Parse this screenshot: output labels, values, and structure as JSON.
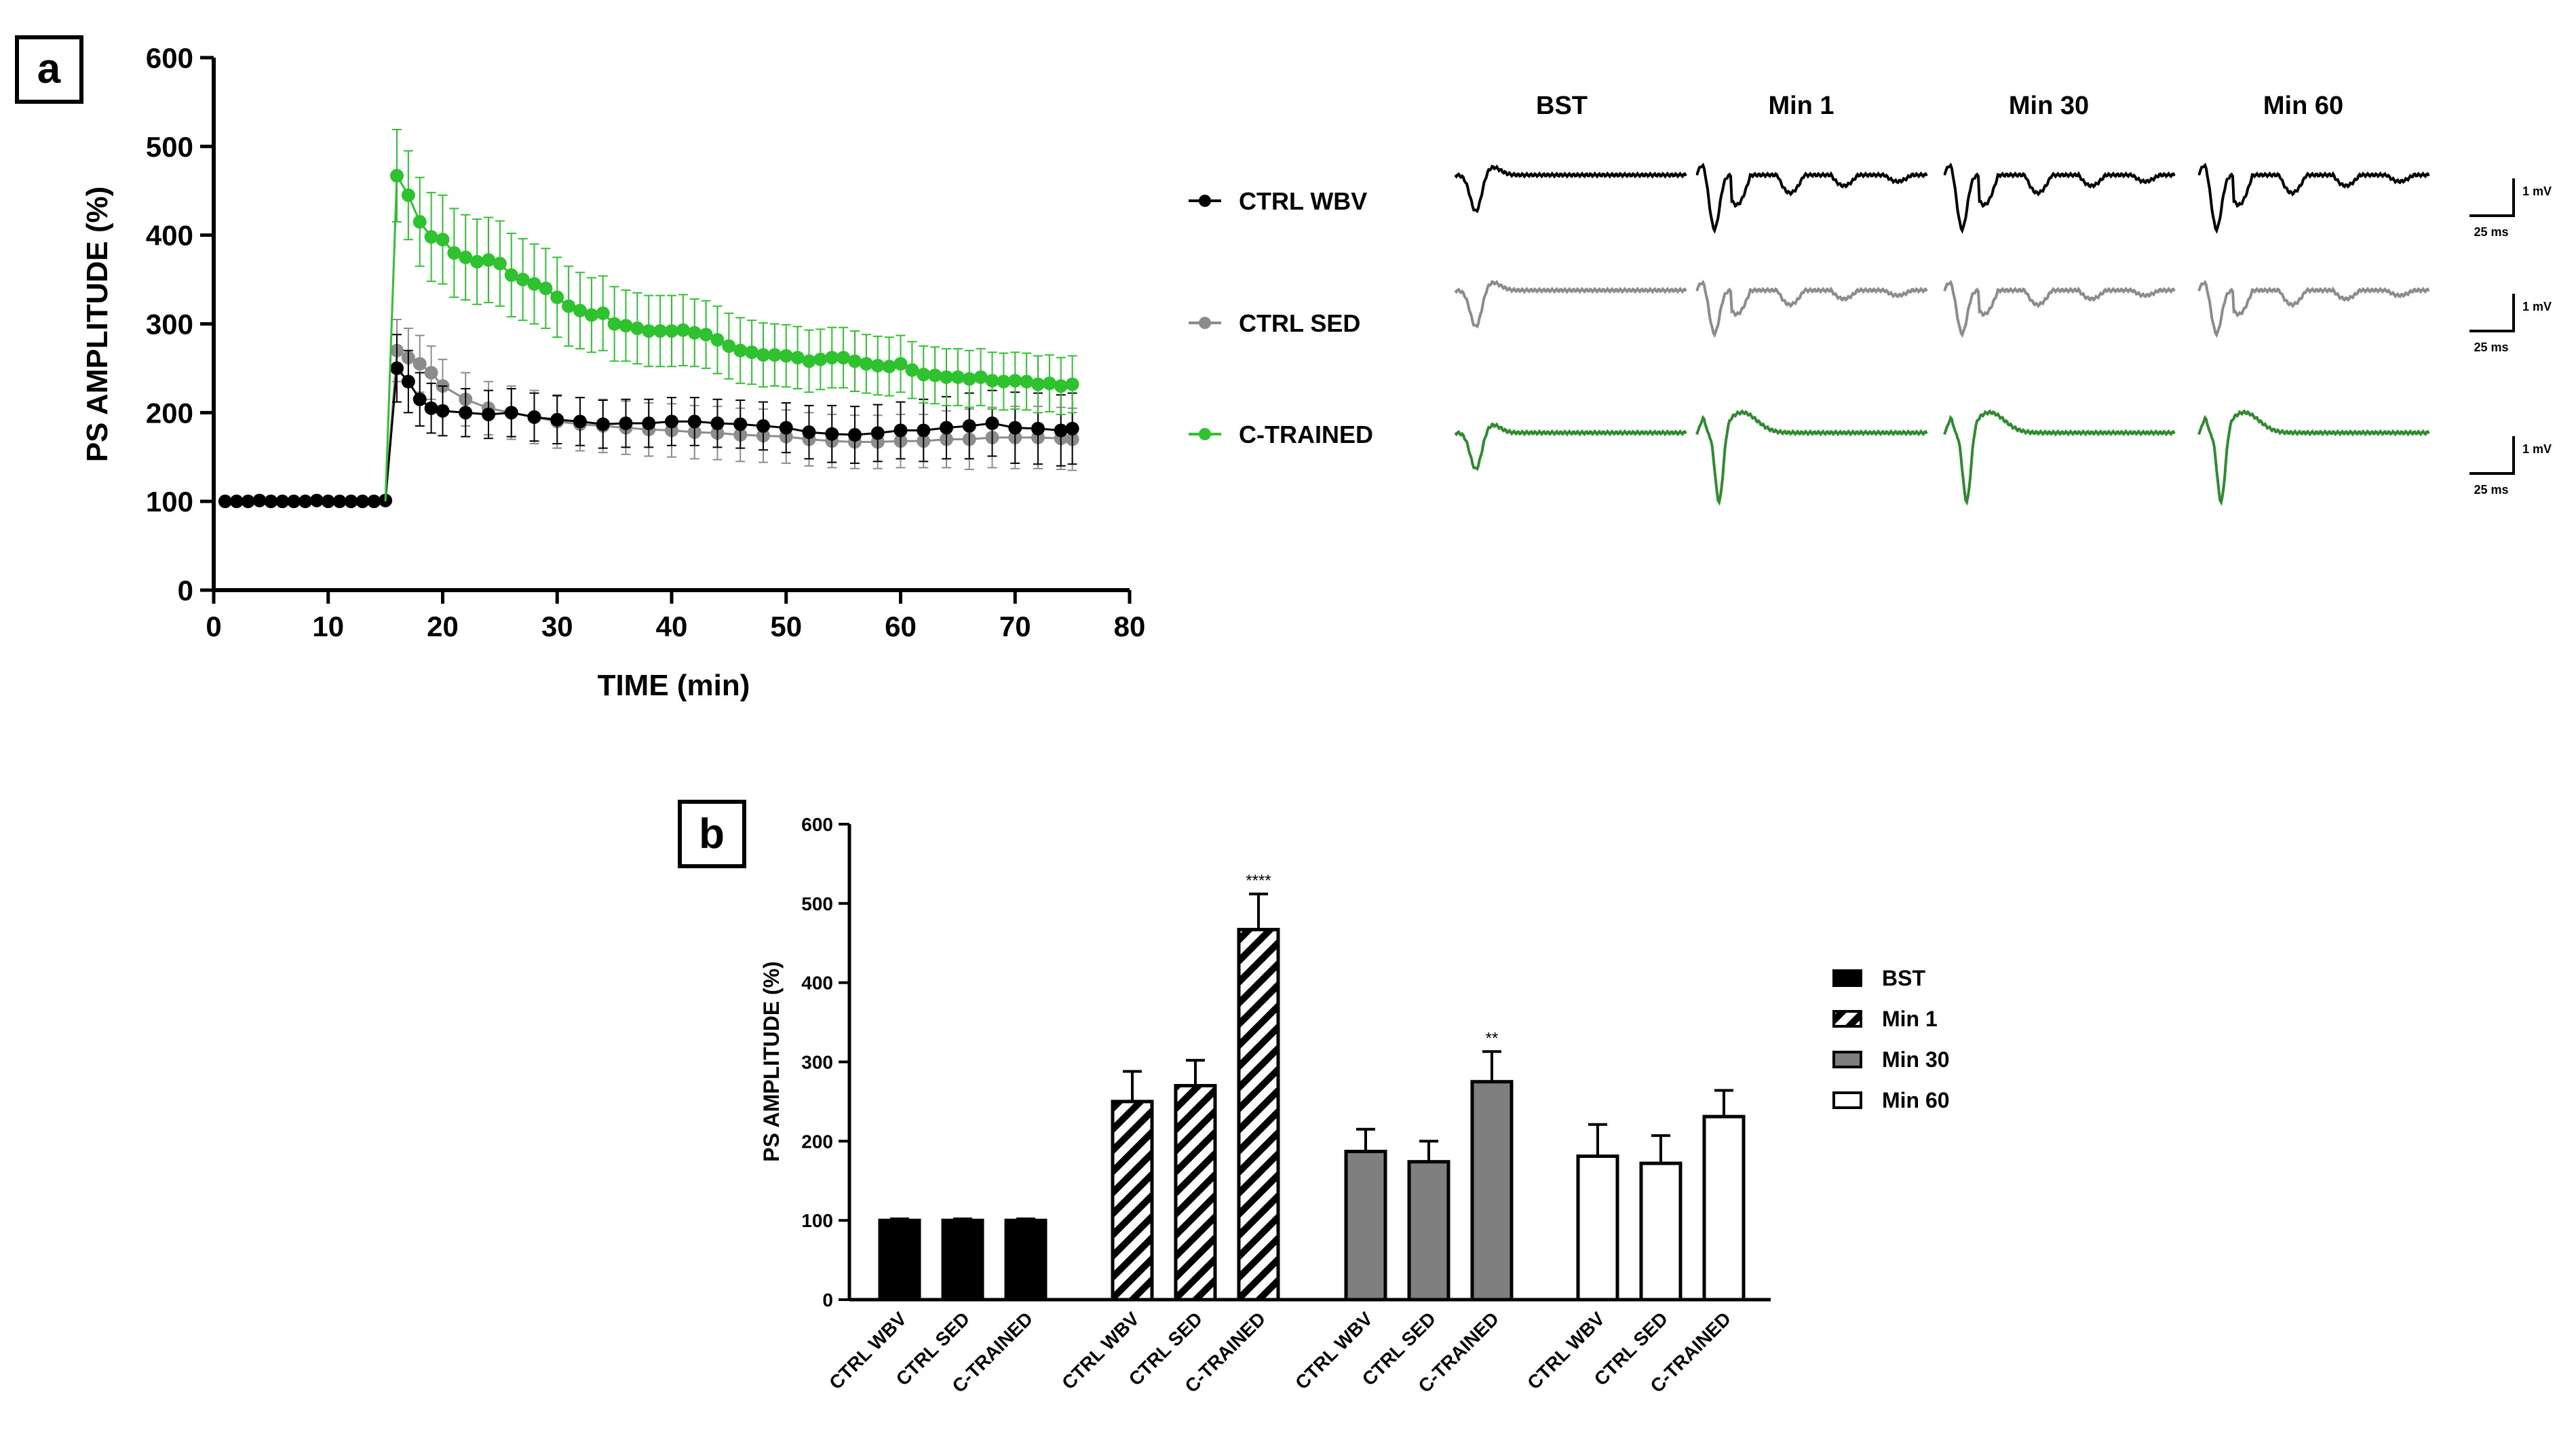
{
  "panel_labels": {
    "a": "a",
    "b": "b"
  },
  "colors": {
    "ctrl_wbv": "#000000",
    "ctrl_sed": "#8c8c8c",
    "c_trained": "#2fc22f",
    "trace_green": "#2e8b2e",
    "axis": "#000000"
  },
  "traces": {
    "columns": [
      "BST",
      "Min 1",
      "Min 30",
      "Min 60"
    ],
    "rows": [
      "CTRL WBV",
      "CTRL SED",
      "C-TRAINED"
    ],
    "scale_voltage": "1 mV",
    "scale_time": "25 ms"
  },
  "chart_data": [
    {
      "id": "panel-a",
      "type": "line",
      "title": "",
      "xlabel": "TIME (min)",
      "ylabel": "PS AMPLITUDE (%)",
      "xlim": [
        0,
        80
      ],
      "ylim": [
        0,
        600
      ],
      "xticks": [
        "0",
        "10",
        "20",
        "30",
        "40",
        "50",
        "60",
        "70",
        "80"
      ],
      "yticks": [
        "0",
        "100",
        "200",
        "300",
        "400",
        "500",
        "600"
      ],
      "legend": "right",
      "series": [
        {
          "name": "CTRL WBV",
          "color": "#000000",
          "x": [
            1,
            2,
            3,
            4,
            5,
            6,
            7,
            8,
            9,
            10,
            11,
            12,
            13,
            14,
            15,
            16,
            17,
            18,
            19,
            20,
            22,
            24,
            26,
            28,
            30,
            32,
            34,
            36,
            38,
            40,
            42,
            44,
            46,
            48,
            50,
            52,
            54,
            56,
            58,
            60,
            62,
            64,
            66,
            68,
            70,
            72,
            74,
            75
          ],
          "y": [
            100,
            100,
            100,
            101,
            100,
            100,
            100,
            100,
            101,
            100,
            100,
            100,
            100,
            100,
            101,
            250,
            235,
            215,
            205,
            202,
            200,
            198,
            200,
            195,
            192,
            190,
            187,
            188,
            188,
            190,
            190,
            188,
            187,
            185,
            183,
            178,
            176,
            175,
            177,
            180,
            180,
            183,
            185,
            188,
            183,
            182,
            180,
            182
          ],
          "err": [
            2,
            2,
            2,
            2,
            2,
            2,
            2,
            2,
            2,
            2,
            2,
            2,
            2,
            2,
            2,
            38,
            35,
            30,
            28,
            28,
            27,
            27,
            27,
            27,
            27,
            27,
            27,
            27,
            27,
            27,
            27,
            27,
            27,
            27,
            28,
            30,
            32,
            32,
            32,
            32,
            35,
            35,
            37,
            37,
            40,
            40,
            40,
            40
          ]
        },
        {
          "name": "CTRL SED",
          "color": "#8c8c8c",
          "x": [
            16,
            17,
            18,
            19,
            20,
            22,
            24,
            26,
            28,
            30,
            32,
            34,
            36,
            38,
            40,
            42,
            44,
            46,
            48,
            50,
            52,
            54,
            56,
            58,
            60,
            62,
            64,
            66,
            68,
            70,
            72,
            74,
            75
          ],
          "y": [
            270,
            262,
            255,
            245,
            230,
            215,
            205,
            200,
            195,
            190,
            187,
            185,
            183,
            181,
            180,
            178,
            177,
            175,
            174,
            173,
            170,
            168,
            167,
            167,
            168,
            168,
            170,
            170,
            172,
            172,
            172,
            171,
            170
          ],
          "err": [
            35,
            33,
            32,
            30,
            30,
            30,
            30,
            30,
            30,
            30,
            30,
            30,
            30,
            30,
            30,
            30,
            30,
            30,
            30,
            30,
            30,
            30,
            30,
            30,
            30,
            30,
            32,
            34,
            34,
            35,
            35,
            35,
            35
          ]
        },
        {
          "name": "C-TRAINED",
          "color": "#2fc22f",
          "x": [
            16,
            17,
            18,
            19,
            20,
            21,
            22,
            23,
            24,
            25,
            26,
            27,
            28,
            29,
            30,
            31,
            32,
            33,
            34,
            35,
            36,
            37,
            38,
            39,
            40,
            41,
            42,
            43,
            44,
            45,
            46,
            47,
            48,
            49,
            50,
            51,
            52,
            53,
            54,
            55,
            56,
            57,
            58,
            59,
            60,
            61,
            62,
            63,
            64,
            65,
            66,
            67,
            68,
            69,
            70,
            71,
            72,
            73,
            74,
            75
          ],
          "y": [
            467,
            445,
            415,
            398,
            395,
            380,
            375,
            370,
            372,
            368,
            355,
            350,
            345,
            340,
            330,
            320,
            315,
            310,
            312,
            300,
            298,
            295,
            292,
            292,
            292,
            293,
            290,
            288,
            282,
            275,
            270,
            268,
            265,
            265,
            264,
            262,
            258,
            260,
            262,
            262,
            258,
            255,
            253,
            252,
            255,
            248,
            243,
            242,
            240,
            240,
            238,
            240,
            236,
            235,
            236,
            235,
            232,
            233,
            230,
            232
          ],
          "err": [
            52,
            50,
            50,
            50,
            50,
            50,
            48,
            48,
            48,
            48,
            47,
            46,
            45,
            45,
            45,
            45,
            43,
            42,
            42,
            42,
            40,
            40,
            40,
            40,
            40,
            40,
            38,
            38,
            38,
            37,
            37,
            36,
            36,
            35,
            35,
            35,
            35,
            34,
            34,
            34,
            34,
            33,
            33,
            33,
            32,
            32,
            32,
            32,
            32,
            32,
            32,
            32,
            32,
            32,
            32,
            32,
            32,
            32,
            32,
            32
          ]
        }
      ]
    },
    {
      "id": "panel-b",
      "type": "bar",
      "title": "",
      "xlabel": "",
      "ylabel": "PS AMPLITUDE (%)",
      "ylim": [
        0,
        600
      ],
      "yticks": [
        "0",
        "100",
        "200",
        "300",
        "400",
        "500",
        "600"
      ],
      "legend": "right",
      "groups": [
        "BST",
        "Min 1",
        "Min 30",
        "Min 60"
      ],
      "categories": [
        "CTRL WBV",
        "CTRL SED",
        "C-TRAINED"
      ],
      "series": [
        {
          "name": "BST",
          "style": "solid-black",
          "values": [
            100,
            100,
            100
          ],
          "errors": [
            2,
            2,
            2
          ],
          "annotations": [
            "",
            "",
            ""
          ]
        },
        {
          "name": "Min 1",
          "style": "hatched",
          "values": [
            250,
            270,
            467
          ],
          "errors": [
            38,
            32,
            45
          ],
          "annotations": [
            "",
            "",
            "****"
          ]
        },
        {
          "name": "Min 30",
          "style": "gray",
          "values": [
            187,
            174,
            275
          ],
          "errors": [
            28,
            26,
            38
          ],
          "annotations": [
            "",
            "",
            "**"
          ]
        },
        {
          "name": "Min 60",
          "style": "white",
          "values": [
            181,
            172,
            231
          ],
          "errors": [
            40,
            35,
            33
          ],
          "annotations": [
            "",
            "",
            ""
          ]
        }
      ]
    }
  ]
}
